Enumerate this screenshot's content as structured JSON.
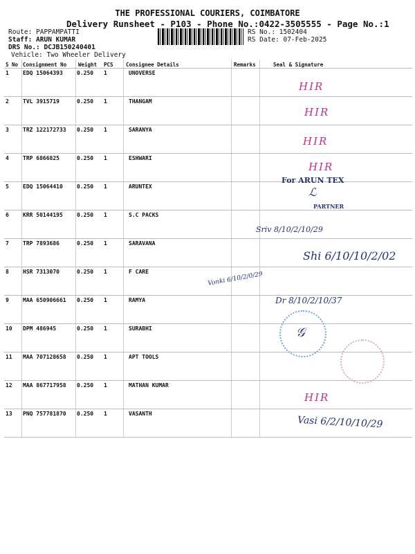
{
  "header": {
    "title": "THE PROFESSIONAL COURIERS, COIMBATORE",
    "subtitle": "Delivery Runsheet - P103 - Phone No.:0422-3505555 - Page No.:1",
    "route": "Route: PAPPAMPATTI",
    "staff": "Staff: ARUN KUMAR",
    "drs": "DRS No.: DCJB150240401",
    "vehicle": "Vehicle: Two Wheeler Delivery",
    "rs_no": "RS No.: 1502404",
    "rs_date": "RS Date: 07-Feb-2025"
  },
  "table": {
    "columns": [
      "S No",
      "Consignment No",
      "Weight",
      "PCS",
      "Consignee Details",
      "Remarks",
      "Seal & Signature"
    ],
    "rows": [
      {
        "sno": "1",
        "consignment": "EDQ 15064393",
        "weight": "0.250",
        "pcs": "1",
        "consignee": "UNOVERSE"
      },
      {
        "sno": "2",
        "consignment": "TVL 3915719",
        "weight": "0.250",
        "pcs": "1",
        "consignee": "THANGAM"
      },
      {
        "sno": "3",
        "consignment": "TRZ 122172733",
        "weight": "0.250",
        "pcs": "1",
        "consignee": "SARANYA"
      },
      {
        "sno": "4",
        "consignment": "TRP 6866825",
        "weight": "0.250",
        "pcs": "1",
        "consignee": "ESHWARI"
      },
      {
        "sno": "5",
        "consignment": "EDQ 15064410",
        "weight": "0.250",
        "pcs": "1",
        "consignee": "ARUNTEX"
      },
      {
        "sno": "6",
        "consignment": "KRR 50144195",
        "weight": "0.250",
        "pcs": "1",
        "consignee": "S.C PACKS"
      },
      {
        "sno": "7",
        "consignment": "TRP 7893686",
        "weight": "0.250",
        "pcs": "1",
        "consignee": "SARAVANA"
      },
      {
        "sno": "8",
        "consignment": "HSR 7313070",
        "weight": "0.250",
        "pcs": "1",
        "consignee": "F CARE"
      },
      {
        "sno": "9",
        "consignment": "MAA 650906661",
        "weight": "0.250",
        "pcs": "1",
        "consignee": "RAMYA"
      },
      {
        "sno": "10",
        "consignment": "DPM 486945",
        "weight": "0.250",
        "pcs": "1",
        "consignee": "SURABHI"
      },
      {
        "sno": "11",
        "consignment": "MAA 707128658",
        "weight": "0.250",
        "pcs": "1",
        "consignee": "APT TOOLS"
      },
      {
        "sno": "12",
        "consignment": "MAA 867717958",
        "weight": "0.250",
        "pcs": "1",
        "consignee": "MATHAN KUMAR"
      },
      {
        "sno": "13",
        "consignment": "PNQ 757781870",
        "weight": "0.250",
        "pcs": "1",
        "consignee": "VASANTH"
      }
    ]
  },
  "signatures": {
    "hir": "HIR",
    "stamp_company": "For ARUN TEX",
    "stamp_role": "PARTNER",
    "sig_row6": "Sriv 8/10/2/10/29",
    "sig_row7": "Shi 6/10/10/2/02",
    "sig_row8": "Vonki 6/10/2/0/29",
    "sig_row9": "Dr 8/10/2/10/37",
    "sig_row13": "Vasi 6/2/10/10/29"
  },
  "colors": {
    "ink_pink": "#c0308a",
    "ink_blue": "#23307a",
    "stamp": "#6aa8c8"
  }
}
